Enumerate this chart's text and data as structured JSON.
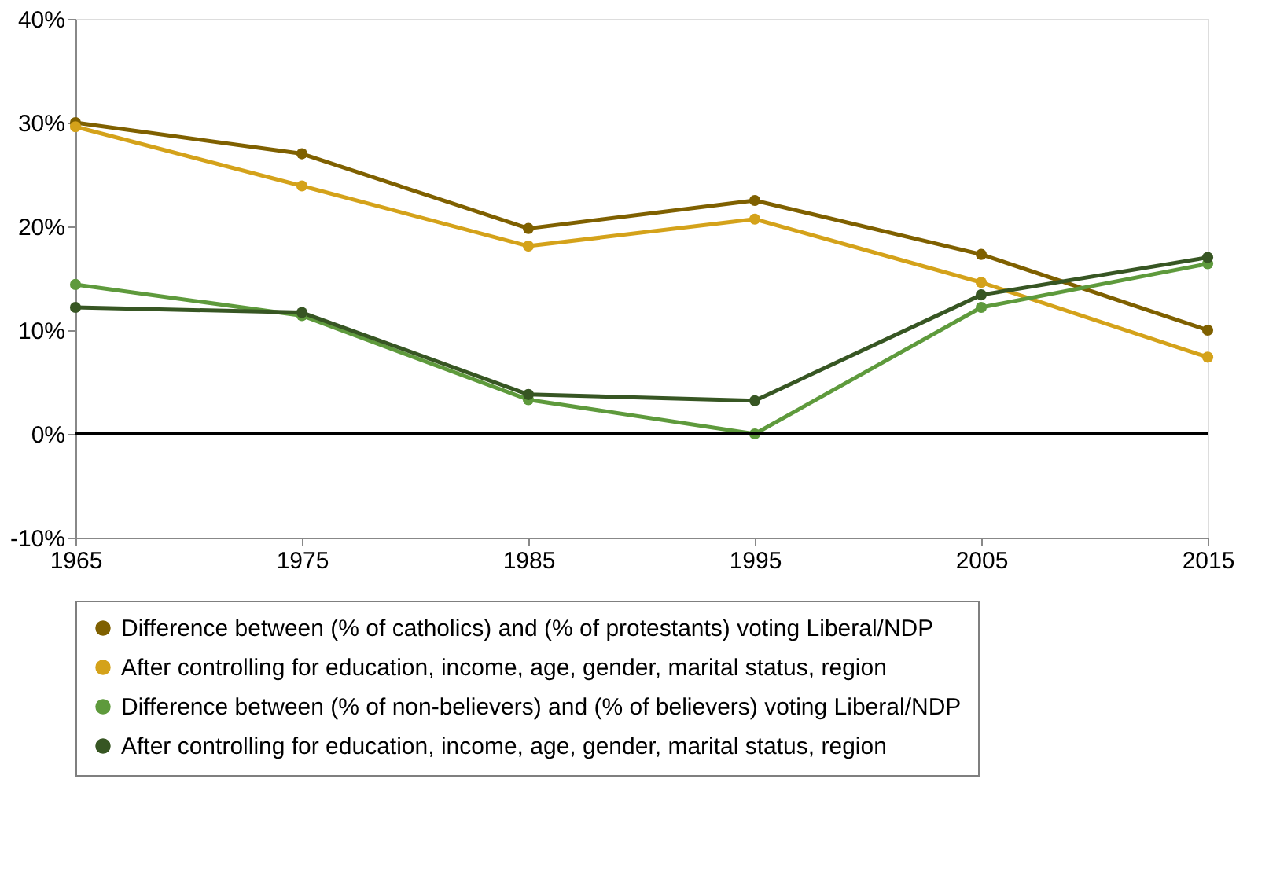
{
  "chart_data": {
    "type": "line",
    "x": [
      1965,
      1975,
      1985,
      1995,
      2005,
      2015
    ],
    "xlim": [
      1965,
      2015
    ],
    "xticks": [
      1965,
      1975,
      1985,
      1995,
      2005,
      2015
    ],
    "ylim": [
      -10,
      40
    ],
    "yticks": [
      {
        "value": -10,
        "label": "-10%"
      },
      {
        "value": 0,
        "label": "0%"
      },
      {
        "value": 10,
        "label": "10%"
      },
      {
        "value": 20,
        "label": "20%"
      },
      {
        "value": 30,
        "label": "30%"
      },
      {
        "value": 40,
        "label": "40%"
      }
    ],
    "series": [
      {
        "name": "Difference between (% of catholics) and (% of protestants) voting Liberal/NDP",
        "color": "#7f6000",
        "values": [
          30.0,
          27.0,
          19.8,
          22.5,
          17.3,
          10.0
        ]
      },
      {
        "name": "After controlling for education, income, age, gender, marital status, region",
        "color": "#d4a21a",
        "values": [
          29.6,
          23.9,
          18.1,
          20.7,
          14.6,
          7.4
        ]
      },
      {
        "name": "Difference between (% of non-believers) and (% of believers) voting Liberal/NDP",
        "color": "#5e9a3c",
        "values": [
          14.4,
          11.4,
          3.3,
          0.0,
          12.2,
          16.4
        ]
      },
      {
        "name": "After controlling for education, income, age, gender, marital status, region",
        "color": "#375623",
        "values": [
          12.2,
          11.7,
          3.8,
          3.2,
          13.4,
          17.0
        ]
      }
    ],
    "ref_lines": [
      {
        "axis": "y",
        "value": 0,
        "color": "#000000"
      }
    ],
    "marker": "circle",
    "line_style": "solid",
    "grid": false,
    "legend": "bottom"
  }
}
